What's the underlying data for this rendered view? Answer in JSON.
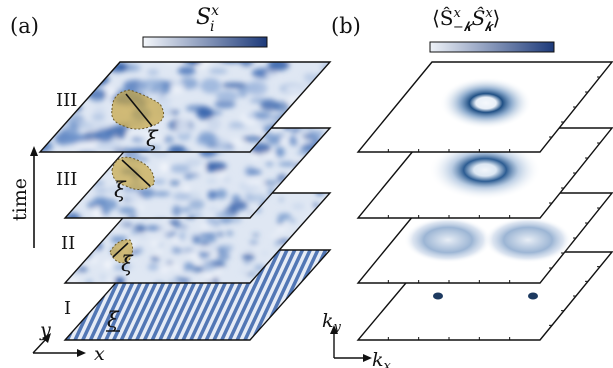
{
  "panels": [
    {
      "label": "(a)",
      "colorbar_title": "S",
      "colorbar_title_sup": "x",
      "colorbar_title_sub": "i",
      "colorbar_colors": [
        "#f4f7fb",
        "#1d3a7a"
      ],
      "time_label": "time",
      "layers": [
        {
          "stage": "III",
          "pattern": "large-domains",
          "marker": "ξ"
        },
        {
          "stage": "III",
          "pattern": "domains",
          "marker": "ξ"
        },
        {
          "stage": "II",
          "pattern": "small-domains",
          "marker": "ξ"
        },
        {
          "stage": "I",
          "pattern": "stripes",
          "marker": "ξ"
        }
      ],
      "axes": {
        "x": "x",
        "y": "y"
      },
      "highlight_color": "#c9a845"
    },
    {
      "label": "(b)",
      "colorbar_title": "⟨Ŝ",
      "colorbar_title_rest": "Ŝ",
      "colorbar_colors": [
        "#eef2f8",
        "#1d3a7a"
      ],
      "layers": [
        {
          "pattern": "ring-small"
        },
        {
          "pattern": "ring-large"
        },
        {
          "pattern": "two-lobes"
        },
        {
          "pattern": "two-peaks"
        }
      ],
      "axes": {
        "x": "k",
        "x_sub": "x",
        "y": "k",
        "y_sub": "y"
      }
    }
  ]
}
